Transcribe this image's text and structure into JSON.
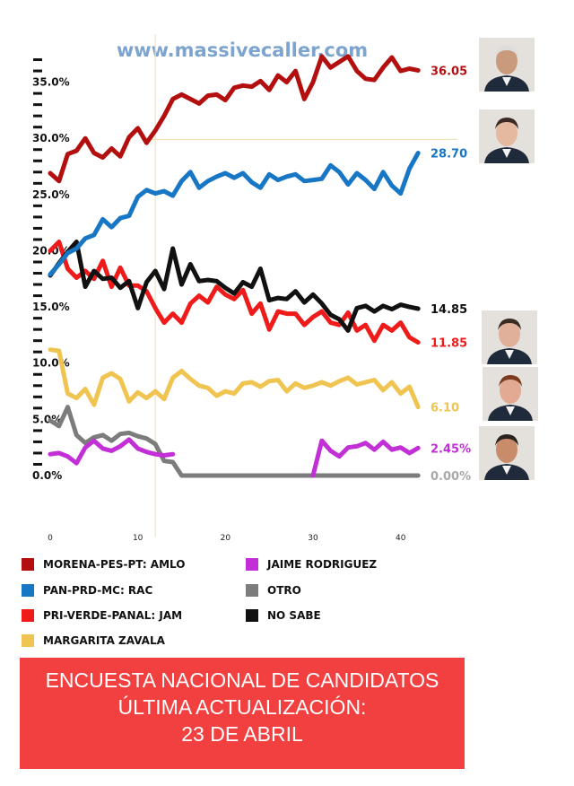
{
  "watermark": "www.massivecaller.com",
  "colors": {
    "amlo": "#b30f0f",
    "rac": "#1877c5",
    "jam": "#ef1b1b",
    "zavala": "#f0c451",
    "jaime": "#c22fd6",
    "otro": "#7c7c7c",
    "nosabe": "#111111",
    "banner": "#f23f3f"
  },
  "portraits": [
    {
      "name": "amlo-portrait",
      "series": "amlo"
    },
    {
      "name": "rac-portrait",
      "series": "rac"
    },
    {
      "name": "jam-portrait",
      "series": "jam"
    },
    {
      "name": "zavala-portrait",
      "series": "zavala"
    },
    {
      "name": "jaime-portrait",
      "series": "jaime"
    }
  ],
  "legend": [
    {
      "key": "amlo",
      "label": "MORENA-PES-PT: AMLO"
    },
    {
      "key": "jaime",
      "label": "JAIME RODRIGUEZ"
    },
    {
      "key": "rac",
      "label": "PAN-PRD-MC: RAC"
    },
    {
      "key": "otro",
      "label": "OTRO"
    },
    {
      "key": "jam",
      "label": "PRI-VERDE-PANAL: JAM"
    },
    {
      "key": "nosabe",
      "label": "NO SABE"
    },
    {
      "key": "zavala",
      "label": "MARGARITA ZAVALA"
    }
  ],
  "banner": {
    "line1": "ENCUESTA NACIONAL DE CANDIDATOS",
    "line2": "ÚLTIMA ACTUALIZACIÓN:",
    "line3": "23 DE ABRIL"
  },
  "chart_data": {
    "type": "line",
    "xlim": [
      0,
      43
    ],
    "ylim": [
      0,
      38
    ],
    "x_ticks": [
      0,
      10,
      20,
      30,
      40
    ],
    "y_ticks": [
      {
        "value": 0,
        "label": "0.0%"
      },
      {
        "value": 5,
        "label": "5.0%"
      },
      {
        "value": 10,
        "label": "10.0%"
      },
      {
        "value": 15,
        "label": "15.0%"
      },
      {
        "value": 20,
        "label": "20.0%"
      },
      {
        "value": 25,
        "label": "25.0%"
      },
      {
        "value": 30,
        "label": "30.0%"
      },
      {
        "value": 35,
        "label": "35.0%"
      }
    ],
    "reference_lines": [
      {
        "axis": "x",
        "value": 12
      },
      {
        "axis": "y",
        "value": 29.9
      }
    ],
    "series": [
      {
        "key": "amlo",
        "name": "MORENA-PES-PT: AMLO",
        "end_label": "36.05",
        "values": [
          26.9,
          26.2,
          28.6,
          28.9,
          30.0,
          28.7,
          28.3,
          29.1,
          28.4,
          30.1,
          30.9,
          29.6,
          30.7,
          32.0,
          33.5,
          33.9,
          33.5,
          33.1,
          33.8,
          33.9,
          33.4,
          34.5,
          34.7,
          34.6,
          35.1,
          34.3,
          35.6,
          35.0,
          36.0,
          33.5,
          35.0,
          37.3,
          36.3,
          36.8,
          37.3,
          36.0,
          35.3,
          35.2,
          36.3,
          37.2,
          36.0,
          36.2,
          36.05
        ]
      },
      {
        "key": "rac",
        "name": "PAN-PRD-MC: RAC",
        "end_label": "28.70",
        "values": [
          17.9,
          18.8,
          19.8,
          20.2,
          21.1,
          21.4,
          22.8,
          22.1,
          22.9,
          23.1,
          24.8,
          25.4,
          25.1,
          25.3,
          24.9,
          26.2,
          27.0,
          25.6,
          26.2,
          26.6,
          26.9,
          26.5,
          26.9,
          26.1,
          25.6,
          26.8,
          26.3,
          26.6,
          26.8,
          26.2,
          26.3,
          26.4,
          27.6,
          27.0,
          25.9,
          26.9,
          26.3,
          25.5,
          27.0,
          25.8,
          25.1,
          27.3,
          28.7
        ]
      },
      {
        "key": "jam",
        "name": "PRI-VERDE-PANAL: JAM",
        "end_label": "11.85",
        "values": [
          20.0,
          20.8,
          18.4,
          17.6,
          18.2,
          17.5,
          19.1,
          16.8,
          18.5,
          16.9,
          16.9,
          16.4,
          14.9,
          13.6,
          14.4,
          13.6,
          15.3,
          16.0,
          15.4,
          16.8,
          16.1,
          15.7,
          16.5,
          14.4,
          15.3,
          13.0,
          14.6,
          14.4,
          14.4,
          13.4,
          14.1,
          14.6,
          13.6,
          13.4,
          14.5,
          12.9,
          13.4,
          12.0,
          13.4,
          12.9,
          13.6,
          12.3,
          11.85
        ]
      },
      {
        "key": "zavala",
        "name": "MARGARITA ZAVALA",
        "end_label": "6.10",
        "values": [
          11.2,
          11.1,
          7.3,
          6.9,
          7.7,
          6.3,
          8.7,
          9.1,
          8.6,
          6.6,
          7.4,
          6.9,
          7.5,
          6.8,
          8.7,
          9.3,
          8.6,
          8.0,
          7.8,
          7.1,
          7.5,
          7.3,
          8.2,
          8.3,
          7.9,
          8.4,
          8.5,
          7.5,
          8.2,
          7.8,
          8.0,
          8.3,
          8.0,
          8.4,
          8.7,
          8.1,
          8.3,
          8.5,
          7.6,
          8.3,
          7.3,
          7.9,
          6.1
        ]
      },
      {
        "key": "jaime",
        "name": "JAIME RODRIGUEZ",
        "end_label": "2.45%",
        "values": [
          1.9,
          2.0,
          1.7,
          1.1,
          2.5,
          3.1,
          2.4,
          2.2,
          2.6,
          3.2,
          2.4,
          2.1,
          1.9,
          1.8,
          1.9,
          null,
          null,
          null,
          null,
          null,
          null,
          null,
          null,
          null,
          null,
          null,
          null,
          null,
          null,
          null,
          0.0,
          3.1,
          2.2,
          1.7,
          2.5,
          2.6,
          2.9,
          2.3,
          3.0,
          2.3,
          2.5,
          2.0,
          2.45
        ]
      },
      {
        "key": "otro",
        "name": "OTRO",
        "end_label": "0.00%",
        "values": [
          4.9,
          4.4,
          6.1,
          3.6,
          2.9,
          3.4,
          3.6,
          3.1,
          3.7,
          3.8,
          3.5,
          3.3,
          2.8,
          1.3,
          1.2,
          0.0,
          0.0,
          0.0,
          0.0,
          0.0,
          0.0,
          0.0,
          0.0,
          0.0,
          0.0,
          0.0,
          0.0,
          0.0,
          0.0,
          0.0,
          0.0,
          0.0,
          0.0,
          0.0,
          0.0,
          0.0,
          0.0,
          0.0,
          0.0,
          0.0,
          0.0,
          0.0,
          0.0
        ]
      },
      {
        "key": "nosabe",
        "name": "NO SABE",
        "end_label": "14.85",
        "values": [
          17.8,
          18.9,
          19.9,
          20.8,
          16.8,
          18.2,
          17.5,
          17.6,
          16.7,
          17.3,
          14.9,
          17.2,
          18.2,
          16.6,
          20.2,
          17.0,
          18.8,
          17.3,
          17.4,
          17.3,
          16.7,
          16.2,
          17.2,
          16.8,
          18.4,
          15.6,
          15.8,
          15.7,
          16.4,
          15.4,
          16.1,
          15.3,
          14.3,
          13.9,
          12.9,
          14.9,
          15.1,
          14.6,
          15.1,
          14.8,
          15.2,
          15.0,
          14.85
        ]
      }
    ]
  }
}
